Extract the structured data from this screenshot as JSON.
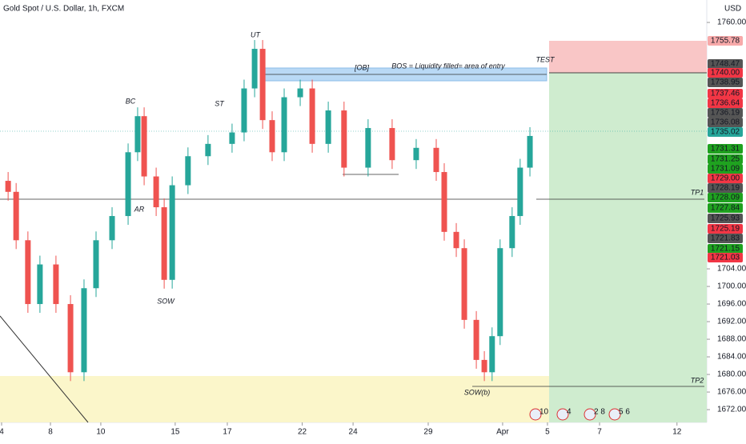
{
  "chart_data": {
    "type": "candlestick",
    "title": "Gold Spot / U.S. Dollar, 1h, FXCM",
    "currency": "USD",
    "up_color": "#26a69a",
    "down_color": "#ef5350",
    "xlim": [
      -0.064,
      28.15
    ],
    "ylim": [
      1669.1,
      1765.1
    ],
    "xticks": [
      {
        "value": 0,
        "label": "4"
      },
      {
        "value": 1.95,
        "label": "8"
      },
      {
        "value": 3.96,
        "label": "10"
      },
      {
        "value": 6.93,
        "label": "15"
      },
      {
        "value": 9.01,
        "label": "17"
      },
      {
        "value": 12.0,
        "label": "22"
      },
      {
        "value": 14.03,
        "label": "24"
      },
      {
        "value": 17.03,
        "label": "29"
      },
      {
        "value": 20.0,
        "label": "Apr"
      },
      {
        "value": 21.79,
        "label": "5"
      },
      {
        "value": 23.87,
        "label": "7"
      },
      {
        "value": 26.96,
        "label": "12"
      }
    ],
    "yticks": [
      {
        "value": 1760,
        "label": "1760.00"
      },
      {
        "value": 1704,
        "label": "1704.00"
      },
      {
        "value": 1700,
        "label": "1700.00"
      },
      {
        "value": 1696,
        "label": "1696.00"
      },
      {
        "value": 1692,
        "label": "1692.00"
      },
      {
        "value": 1688,
        "label": "1688.00"
      },
      {
        "value": 1684,
        "label": "1684.00"
      },
      {
        "value": 1680,
        "label": "1680.00"
      },
      {
        "value": 1676,
        "label": "1676.00"
      },
      {
        "value": 1672,
        "label": "1672.00"
      }
    ],
    "x": [
      0.26,
      0.58,
      1.05,
      1.53,
      2.17,
      2.75,
      3.29,
      3.77,
      4.41,
      5.05,
      5.43,
      5.69,
      6.17,
      6.49,
      6.81,
      7.44,
      8.24,
      9.2,
      9.68,
      10.1,
      10.42,
      10.8,
      11.28,
      11.92,
      12.4,
      13.04,
      13.67,
      14.63,
      15.59,
      16.55,
      17.35,
      17.67,
      18.15,
      18.47,
      18.95,
      19.27,
      19.58,
      19.9,
      20.38,
      20.7,
      21.09
    ],
    "open": [
      1724,
      1721.5,
      1710.5,
      1696,
      1705,
      1696,
      1680.5,
      1699.6,
      1710.5,
      1716,
      1730.5,
      1738.7,
      1725,
      1718,
      1701.5,
      1723,
      1729.6,
      1732.4,
      1735,
      1745,
      1754,
      1737.8,
      1730.5,
      1743,
      1745,
      1732.4,
      1740,
      1727,
      1736,
      1728.7,
      1731.5,
      1726,
      1712.4,
      1708.7,
      1692.4,
      1683.3,
      1680.5,
      1688.7,
      1708.7,
      1716,
      1727
    ],
    "high": [
      1726,
      1723.5,
      1712.5,
      1707,
      1707,
      1698,
      1701.6,
      1712.5,
      1718,
      1732.5,
      1740.7,
      1740.7,
      1727,
      1720,
      1725,
      1731.6,
      1734.4,
      1737,
      1747,
      1756,
      1756,
      1739.8,
      1745,
      1747,
      1747,
      1742,
      1742,
      1738,
      1738,
      1733.5,
      1733.5,
      1728,
      1714.4,
      1710.7,
      1694.4,
      1685.3,
      1690.7,
      1710.7,
      1718,
      1729,
      1736.2
    ],
    "low": [
      1719.5,
      1708.5,
      1694,
      1694,
      1694,
      1678.5,
      1678.5,
      1697.6,
      1708.5,
      1714,
      1728.5,
      1723,
      1716,
      1699.5,
      1699.5,
      1721,
      1727.6,
      1730.4,
      1733,
      1743,
      1735.8,
      1728.5,
      1728.5,
      1741,
      1730.4,
      1730.4,
      1725,
      1725,
      1726.7,
      1726.7,
      1724,
      1710.4,
      1706.7,
      1690.4,
      1681.3,
      1678.5,
      1678.5,
      1686.7,
      1706.7,
      1714,
      1725
    ],
    "close": [
      1721.5,
      1710.5,
      1696,
      1705,
      1696,
      1680.5,
      1699.6,
      1710.5,
      1716,
      1730.5,
      1738.7,
      1725,
      1718,
      1701.5,
      1723,
      1729.6,
      1732.4,
      1735,
      1745,
      1754,
      1737.8,
      1730.5,
      1743,
      1745,
      1732.4,
      1740,
      1727,
      1736,
      1728.7,
      1731.5,
      1726,
      1712.4,
      1708.7,
      1692.4,
      1683.3,
      1680.5,
      1688.7,
      1708.7,
      1716,
      1727,
      1734.2
    ],
    "price_tags": [
      {
        "label": "1755.78",
        "color": "#f7a9a9"
      },
      {
        "label": "1748.47",
        "color": "#555555"
      },
      {
        "label": "1740.00",
        "color": "#f23645"
      },
      {
        "label": "1738.95",
        "color": "#555555"
      },
      {
        "label": "1737.46",
        "color": "#f23645"
      },
      {
        "label": "1736.64",
        "color": "#f23645"
      },
      {
        "label": "1736.19",
        "color": "#555555"
      },
      {
        "label": "1736.08",
        "color": "#555555"
      },
      {
        "label": "1735.02",
        "color": "#26a69a"
      },
      {
        "label": "1731.31",
        "color": "#1fa21f"
      },
      {
        "label": "1731.25",
        "color": "#1fa21f"
      },
      {
        "label": "1731.09",
        "color": "#1fa21f"
      },
      {
        "label": "1729.00",
        "color": "#f23645"
      },
      {
        "label": "1728.19",
        "color": "#555555"
      },
      {
        "label": "1728.09",
        "color": "#1fa21f"
      },
      {
        "label": "1727.84",
        "color": "#1fa21f"
      },
      {
        "label": "1725.93",
        "color": "#555555"
      },
      {
        "label": "1725.19",
        "color": "#f23645"
      },
      {
        "label": "1721.83",
        "color": "#555555"
      },
      {
        "label": "1721.15",
        "color": "#1fa21f"
      },
      {
        "label": "1721.03",
        "color": "#f23645"
      }
    ],
    "annotations": [
      "UT",
      "BC",
      "ST",
      "AR",
      "SOW",
      "[OB]",
      "BOS = Liquidity filled= area of entry",
      "TEST",
      "TP1",
      "TP2",
      "SOW(b)"
    ],
    "events": [
      "10",
      "4",
      "2 8",
      "5 6"
    ]
  }
}
